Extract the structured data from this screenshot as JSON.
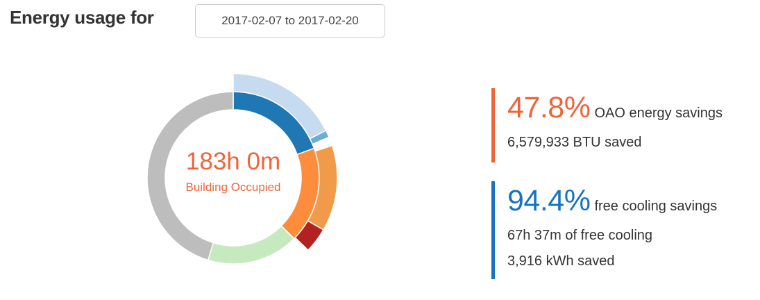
{
  "header": {
    "title": "Energy usage for",
    "date_range": "2017-02-07 to 2017-02-20"
  },
  "center": {
    "hours": "183h 0m",
    "label": "Building Occupied"
  },
  "stats": {
    "oao": {
      "percent": "47.8%",
      "description": "OAO energy savings",
      "line1": "6,579,933 BTU saved",
      "color": "#f0643a"
    },
    "free_cooling": {
      "percent": "94.4%",
      "description": "free cooling savings",
      "line1": "67h 37m of free cooling",
      "line2": "3,916 kWh saved",
      "color": "#1872c4"
    }
  },
  "chart_data": {
    "type": "sunburst",
    "title": "",
    "total_degrees": 360,
    "inner_ring": [
      {
        "start": 0,
        "end": 70,
        "color": "#1f77b4"
      },
      {
        "start": 70,
        "end": 135,
        "color": "#fd8d3c"
      },
      {
        "start": 135,
        "end": 197,
        "color": "#c7e9c0"
      },
      {
        "start": 197,
        "end": 360,
        "color": "#bdbdbd"
      }
    ],
    "outer_ring": [
      {
        "start": 0,
        "end": 63,
        "color": "#c6dbef"
      },
      {
        "start": 63,
        "end": 67,
        "color": "#6baed6"
      },
      {
        "start": 72,
        "end": 120,
        "color": "#f09a4a"
      },
      {
        "start": 120,
        "end": 134,
        "color": "#b22222"
      }
    ]
  }
}
